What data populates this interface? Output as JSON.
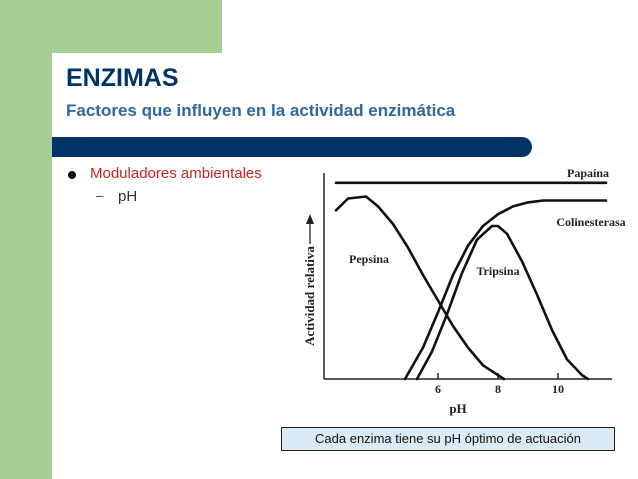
{
  "slide": {
    "title": "ENZIMAS",
    "subtitle": "Factores que influyen en la actividad enzimática",
    "bullet1": "Moduladores ambientales",
    "sub_bullet_marker": "–",
    "sub_bullet1": "pH",
    "caption": "Cada enzima tiene su pH óptimo de actuación"
  },
  "colors": {
    "accent_green": "#a6cd92",
    "title_navy": "#003366",
    "subtitle_blue": "#336699",
    "bullet_red": "#cc2222",
    "caption_bg": "#dceaf6"
  },
  "chart_data": {
    "type": "line",
    "xlabel": "pH",
    "ylabel": "Actividad relativa",
    "xlim": [
      2.2,
      11.8
    ],
    "ylim": [
      0,
      1.05
    ],
    "xticks": [
      6,
      8,
      10
    ],
    "grid": false,
    "legend": "none",
    "series": [
      {
        "name": "Papaína",
        "label_pos": [
          11.0,
          1.03
        ],
        "x": [
          2.6,
          11.6
        ],
        "y": [
          1.0,
          1.0
        ]
      },
      {
        "name": "Colinesterasa",
        "label_pos": [
          11.1,
          0.78
        ],
        "x": [
          4.9,
          5.5,
          6.0,
          6.5,
          7.0,
          7.5,
          8.0,
          8.5,
          9.0,
          9.5,
          10.0,
          11.0,
          11.6
        ],
        "y": [
          0.0,
          0.16,
          0.34,
          0.53,
          0.68,
          0.78,
          0.84,
          0.88,
          0.9,
          0.91,
          0.91,
          0.91,
          0.91
        ]
      },
      {
        "name": "Pepsina",
        "label_pos": [
          3.7,
          0.59
        ],
        "x": [
          2.6,
          3.0,
          3.6,
          4.0,
          4.5,
          5.0,
          5.5,
          6.0,
          6.5,
          7.0,
          7.5,
          8.0,
          8.2
        ],
        "y": [
          0.86,
          0.92,
          0.93,
          0.88,
          0.79,
          0.67,
          0.53,
          0.4,
          0.27,
          0.16,
          0.07,
          0.02,
          0.0
        ]
      },
      {
        "name": "Tripsina",
        "label_pos": [
          8.0,
          0.53
        ],
        "x": [
          5.3,
          5.8,
          6.3,
          6.8,
          7.3,
          7.8,
          8.0,
          8.3,
          8.8,
          9.3,
          9.8,
          10.3,
          10.8,
          11.0
        ],
        "y": [
          0.0,
          0.14,
          0.33,
          0.54,
          0.71,
          0.78,
          0.78,
          0.74,
          0.6,
          0.43,
          0.25,
          0.1,
          0.02,
          0.0
        ]
      }
    ]
  }
}
